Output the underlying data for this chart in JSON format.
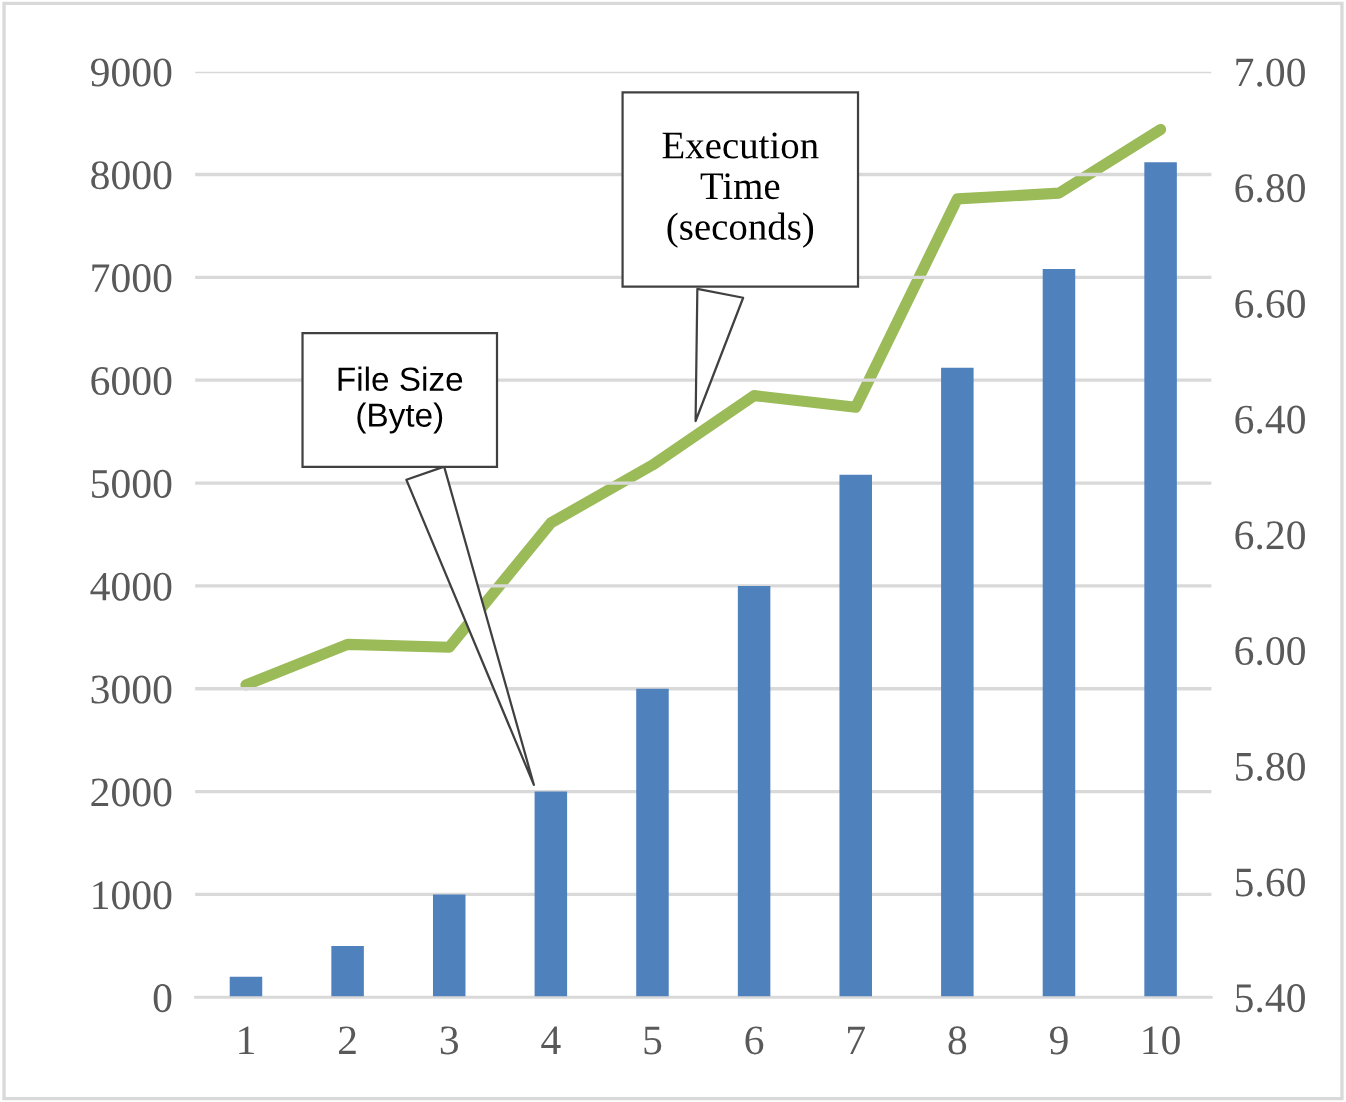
{
  "chart_data": {
    "type": "bar",
    "categories": [
      "1",
      "2",
      "3",
      "4",
      "5",
      "6",
      "7",
      "8",
      "9",
      "10"
    ],
    "series": [
      {
        "color": "#4f81bd",
        "values": [
          200,
          500,
          1000,
          2000,
          3000,
          4000,
          5080,
          6120,
          7080,
          8120
        ]
      },
      {
        "type": "line",
        "axis": "y2",
        "color": "#9bbb59",
        "values": [
          5.94,
          6.01,
          6.005,
          6.22,
          6.32,
          6.44,
          6.42,
          6.78,
          6.79,
          6.9
        ]
      }
    ],
    "ylim": [
      0,
      9000
    ],
    "yticks": [
      0,
      1000,
      2000,
      3000,
      4000,
      5000,
      6000,
      7000,
      8000,
      9000
    ],
    "y2lim": [
      5.4,
      7.0
    ],
    "y2ticks": [
      {
        "value": 5.4,
        "label": "5.40"
      },
      {
        "value": 5.6,
        "label": "5.60"
      },
      {
        "value": 5.8,
        "label": "5.80"
      },
      {
        "value": 6.0,
        "label": "6.00"
      },
      {
        "value": 6.2,
        "label": "6.20"
      },
      {
        "value": 6.4,
        "label": "6.40"
      },
      {
        "value": 6.6,
        "label": "6.60"
      },
      {
        "value": 6.8,
        "label": "6.80"
      },
      {
        "value": 7.0,
        "label": "7.00"
      }
    ],
    "grid": "y",
    "legend": false,
    "marker": "none",
    "line_style": "solid",
    "annotations": [
      "File Size\n(Byte)",
      "Execution\nTime\n(seconds)"
    ]
  }
}
